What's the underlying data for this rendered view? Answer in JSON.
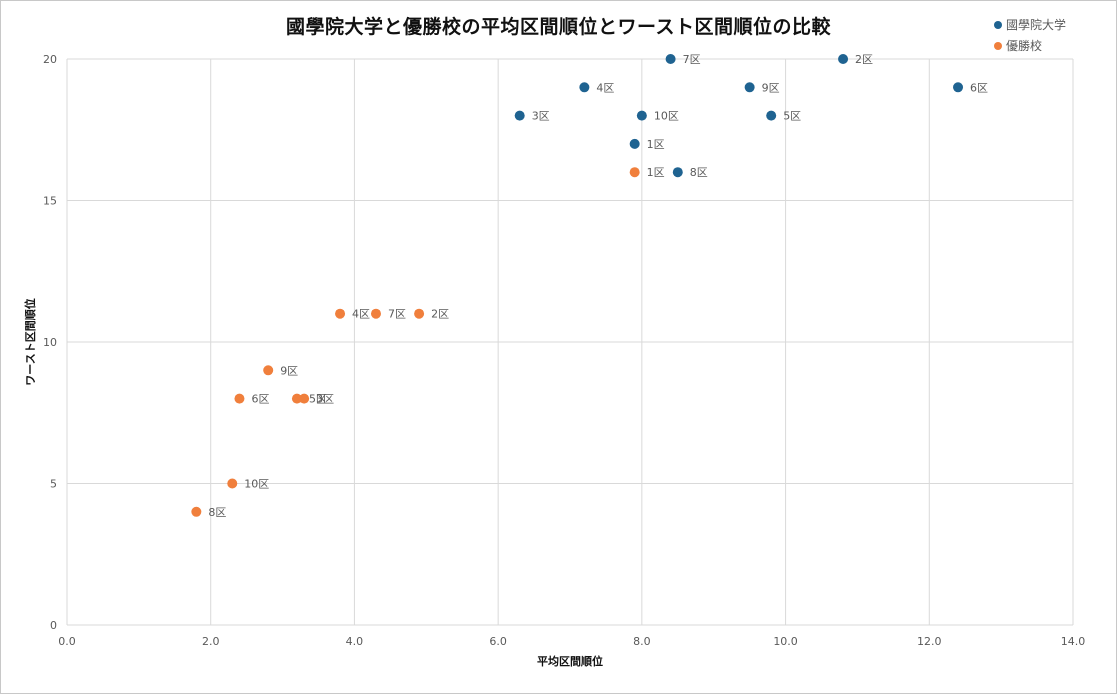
{
  "chart_data": {
    "type": "scatter",
    "title": "國學院大学と優勝校の平均区間順位とワースト区間順位の比較",
    "xlabel": "平均区間順位",
    "ylabel": "ワースト区間順位",
    "xlim": [
      0,
      14
    ],
    "ylim": [
      0,
      20
    ],
    "x_ticks": [
      "0.0",
      "2.0",
      "4.0",
      "6.0",
      "8.0",
      "10.0",
      "12.0",
      "14.0"
    ],
    "y_ticks": [
      "0",
      "5",
      "10",
      "15",
      "20"
    ],
    "grid": true,
    "legend_position": "top-right",
    "series": [
      {
        "name": "國學院大学",
        "color": "#1f6391",
        "points": [
          {
            "x": 7.9,
            "y": 17,
            "label": "1区"
          },
          {
            "x": 10.8,
            "y": 20,
            "label": "2区"
          },
          {
            "x": 6.3,
            "y": 18,
            "label": "3区"
          },
          {
            "x": 7.2,
            "y": 19,
            "label": "4区"
          },
          {
            "x": 9.8,
            "y": 18,
            "label": "5区"
          },
          {
            "x": 12.4,
            "y": 19,
            "label": "6区"
          },
          {
            "x": 8.4,
            "y": 20,
            "label": "7区"
          },
          {
            "x": 8.5,
            "y": 16,
            "label": "8区"
          },
          {
            "x": 9.5,
            "y": 19,
            "label": "9区"
          },
          {
            "x": 8.0,
            "y": 18,
            "label": "10区"
          }
        ]
      },
      {
        "name": "優勝校",
        "color": "#f07f3c",
        "points": [
          {
            "x": 7.9,
            "y": 16,
            "label": "1区"
          },
          {
            "x": 4.9,
            "y": 11,
            "label": "2区"
          },
          {
            "x": 3.3,
            "y": 8,
            "label": "3区"
          },
          {
            "x": 3.8,
            "y": 11,
            "label": "4区"
          },
          {
            "x": 3.2,
            "y": 8,
            "label": "5区"
          },
          {
            "x": 2.4,
            "y": 8,
            "label": "6区"
          },
          {
            "x": 4.3,
            "y": 11,
            "label": "7区"
          },
          {
            "x": 1.8,
            "y": 4,
            "label": "8区"
          },
          {
            "x": 2.8,
            "y": 9,
            "label": "9区"
          },
          {
            "x": 2.3,
            "y": 5,
            "label": "10区"
          }
        ]
      }
    ]
  }
}
